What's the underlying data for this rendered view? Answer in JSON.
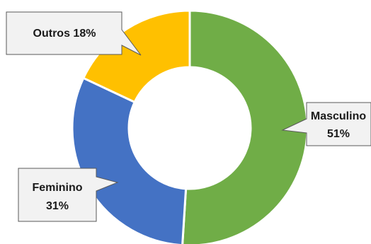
{
  "chart_data": {
    "type": "pie",
    "subtype": "donut",
    "title": "",
    "slices": [
      {
        "label": "Masculino",
        "value": 51,
        "display": "51%",
        "color": "#70ad47"
      },
      {
        "label": "Feminino",
        "value": 31,
        "display": "31%",
        "color": "#4472c4"
      },
      {
        "label": "Outros",
        "value": 18,
        "display": "18%",
        "color": "#ffc000"
      }
    ],
    "callouts": {
      "masculino": {
        "line1": "Masculino",
        "line2": "51%"
      },
      "feminino": {
        "line1": "Feminino",
        "line2": "31%"
      },
      "outros": {
        "line1": "Outros 18%"
      }
    },
    "legend": "none"
  }
}
